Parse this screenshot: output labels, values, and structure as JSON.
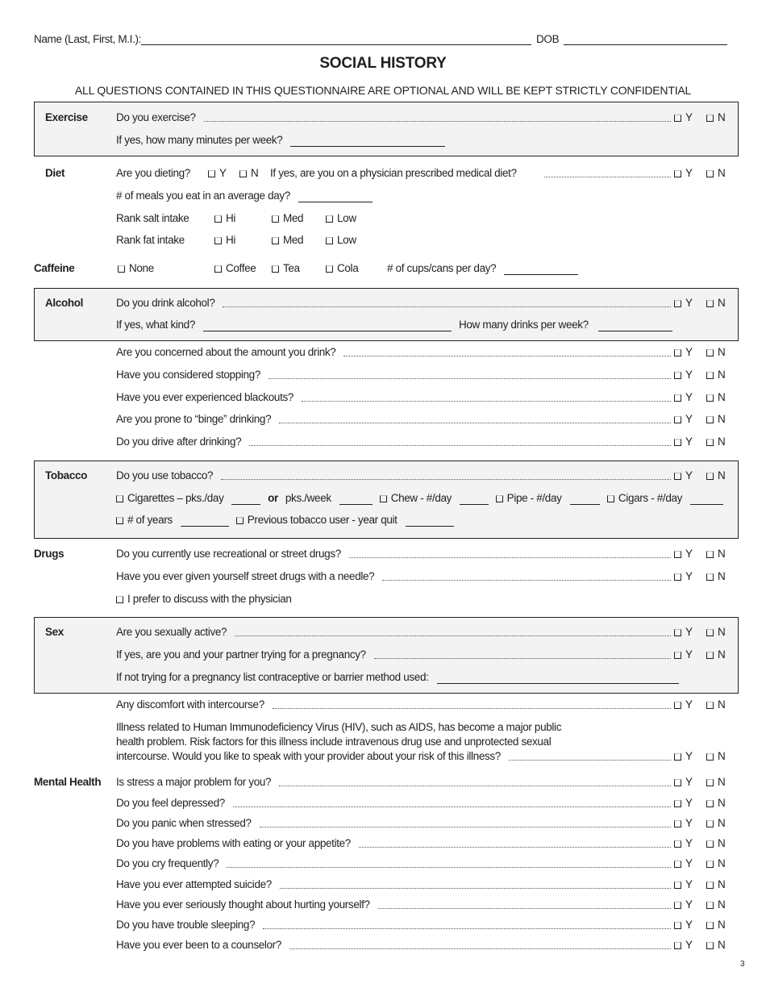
{
  "header": {
    "name_label": "Name (Last, First, M.I.):",
    "dob_label": "DOB",
    "title": "SOCIAL HISTORY",
    "subtitle": "ALL QUESTIONS CONTAINED IN THIS QUESTIONNAIRE ARE OPTIONAL AND WILL BE KEPT STRICTLY CONFIDENTIAL"
  },
  "yes": "Y",
  "no": "N",
  "sections": [
    {
      "id": "exercise",
      "label": "Exercise",
      "rows": [
        {
          "parts": [
            {
              "text": "Do you exercise?"
            }
          ],
          "yn": true
        },
        {
          "parts": [
            {
              "text": "If yes, how many minutes per week?"
            },
            {
              "blank": true
            }
          ]
        }
      ]
    },
    {
      "id": "diet",
      "label": "Diet",
      "rows": [
        {
          "parts": [
            {
              "text": "Are you dieting?"
            },
            {
              "checkbox": "Y"
            },
            {
              "checkbox": "N"
            },
            {
              "text": "If yes, are you on a physician prescribed medical diet?"
            }
          ],
          "yn": true
        },
        {
          "parts": [
            {
              "text": "# of meals you eat in an average day?"
            },
            {
              "blank": true
            }
          ]
        },
        {
          "parts": [
            {
              "text": "Rank salt intake"
            },
            {
              "checkbox": "Hi"
            },
            {
              "checkbox": "Med"
            },
            {
              "checkbox": "Low"
            }
          ]
        },
        {
          "parts": [
            {
              "text": "Rank fat intake"
            },
            {
              "checkbox": "Hi"
            },
            {
              "checkbox": "Med"
            },
            {
              "checkbox": "Low"
            }
          ]
        }
      ]
    },
    {
      "id": "caffeine",
      "label": "Caffeine",
      "rows": [
        {
          "parts": [
            {
              "checkbox": "None"
            },
            {
              "checkbox": "Coffee"
            },
            {
              "checkbox": "Tea"
            },
            {
              "checkbox": "Cola"
            },
            {
              "text": "# of cups/cans per day?"
            },
            {
              "blank": true
            }
          ]
        }
      ]
    },
    {
      "id": "alcohol",
      "label": "Alcohol",
      "rows": [
        {
          "parts": [
            {
              "text": "Do you drink alcohol?"
            }
          ],
          "yn": true
        },
        {
          "parts": [
            {
              "text": "If yes, what kind?"
            },
            {
              "blank": true
            },
            {
              "text": "How many drinks per week?"
            },
            {
              "blank": true
            }
          ]
        }
      ]
    },
    {
      "id": "alcohol-more",
      "label": "",
      "rows": [
        {
          "parts": [
            {
              "text": "Are you concerned about the amount you drink?"
            }
          ],
          "yn": true
        },
        {
          "parts": [
            {
              "text": "Have you considered stopping?"
            }
          ],
          "yn": true
        },
        {
          "parts": [
            {
              "text": "Have you ever experienced blackouts?"
            }
          ],
          "yn": true
        },
        {
          "parts": [
            {
              "text": "Are you prone to “binge” drinking?"
            }
          ],
          "yn": true
        },
        {
          "parts": [
            {
              "text": "Do you drive after drinking?"
            }
          ],
          "yn": true
        }
      ]
    },
    {
      "id": "tobacco",
      "label": "Tobacco",
      "rows": [
        {
          "parts": [
            {
              "text": "Do you use tobacco?"
            }
          ],
          "yn": true
        },
        {
          "parts": [
            {
              "checkbox": "Cigarettes – pks./day"
            },
            {
              "blank": true
            },
            {
              "bold": "or"
            },
            {
              "text": "pks./week"
            },
            {
              "blank": true
            },
            {
              "checkbox": "Chew - #/day"
            },
            {
              "blank": true
            },
            {
              "checkbox": "Pipe - #/day"
            },
            {
              "blank": true
            },
            {
              "checkbox": "Cigars - #/day"
            },
            {
              "blank": true
            }
          ]
        },
        {
          "parts": [
            {
              "checkbox": "# of years"
            },
            {
              "blank": true
            },
            {
              "checkbox": "Previous tobacco user - year quit"
            },
            {
              "blank": true
            }
          ]
        }
      ]
    },
    {
      "id": "drugs",
      "label": "Drugs",
      "rows": [
        {
          "parts": [
            {
              "text": "Do you currently use recreational or street drugs?"
            }
          ],
          "yn": true
        },
        {
          "parts": [
            {
              "text": "Have you ever given yourself street drugs with a needle?"
            }
          ],
          "yn": true
        },
        {
          "parts": [
            {
              "checkbox": "I prefer to discuss with the physician"
            }
          ]
        }
      ]
    },
    {
      "id": "sex",
      "label": "Sex",
      "rows": [
        {
          "parts": [
            {
              "text": "Are you sexually active?"
            }
          ],
          "yn": true
        },
        {
          "parts": [
            {
              "text": "If yes, are you and your partner trying for a pregnancy?"
            }
          ],
          "yn": true
        },
        {
          "parts": [
            {
              "text": "If not trying for a pregnancy list contraceptive or barrier method used:"
            },
            {
              "blank": true
            }
          ]
        }
      ]
    },
    {
      "id": "sex-more",
      "label": "",
      "rows": [
        {
          "parts": [
            {
              "text": "Any discomfort with intercourse?"
            }
          ],
          "yn": true
        },
        {
          "parts": [
            {
              "text": "Illness related to Human Immunodeficiency Virus (HIV), such as AIDS, has become a major public"
            }
          ]
        },
        {
          "parts": [
            {
              "text": "health problem. Risk factors for this illness include intravenous drug use and unprotected sexual"
            }
          ]
        },
        {
          "parts": [
            {
              "text": "intercourse. Would you like to speak with your provider about your risk of this illness?"
            }
          ],
          "yn": true
        }
      ]
    },
    {
      "id": "mental-health",
      "label": "Mental Health",
      "rows": [
        {
          "parts": [
            {
              "text": "Is stress a major problem for you?"
            }
          ],
          "yn": true
        },
        {
          "parts": [
            {
              "text": "Do you feel depressed?"
            }
          ],
          "yn": true
        },
        {
          "parts": [
            {
              "text": "Do you panic when stressed?"
            }
          ],
          "yn": true
        },
        {
          "parts": [
            {
              "text": "Do you have problems with eating or your appetite?"
            }
          ],
          "yn": true
        },
        {
          "parts": [
            {
              "text": "Do you cry frequently?"
            }
          ],
          "yn": true
        },
        {
          "parts": [
            {
              "text": "Have you ever attempted suicide?"
            }
          ],
          "yn": true
        },
        {
          "parts": [
            {
              "text": "Have you ever seriously thought about hurting yourself?"
            }
          ],
          "yn": true
        },
        {
          "parts": [
            {
              "text": "Do you have trouble sleeping?"
            }
          ],
          "yn": true
        },
        {
          "parts": [
            {
              "text": "Have you ever been to a counselor?"
            }
          ],
          "yn": true
        }
      ]
    }
  ],
  "page_number": "3"
}
